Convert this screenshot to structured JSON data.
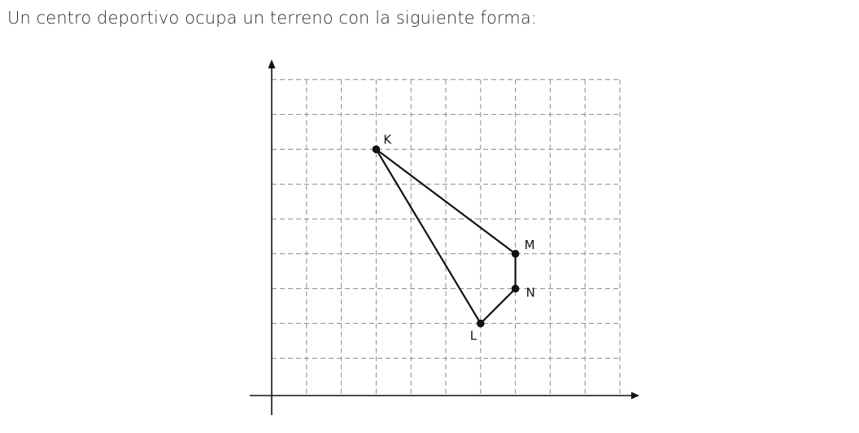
{
  "statement": "Un centro deportivo ocupa un terreno con la siguiente forma:",
  "diagram": {
    "grid": {
      "columns": 10,
      "rows": 9,
      "dashed": true
    },
    "points": [
      {
        "label": "K",
        "x": 3,
        "y": 7
      },
      {
        "label": "M",
        "x": 7,
        "y": 4
      },
      {
        "label": "N",
        "x": 7,
        "y": 3
      },
      {
        "label": "L",
        "x": 6,
        "y": 2
      }
    ],
    "polygon_order": [
      "K",
      "M",
      "N",
      "L"
    ],
    "line_color": "#111111",
    "grid_color": "#8a8a8a"
  }
}
